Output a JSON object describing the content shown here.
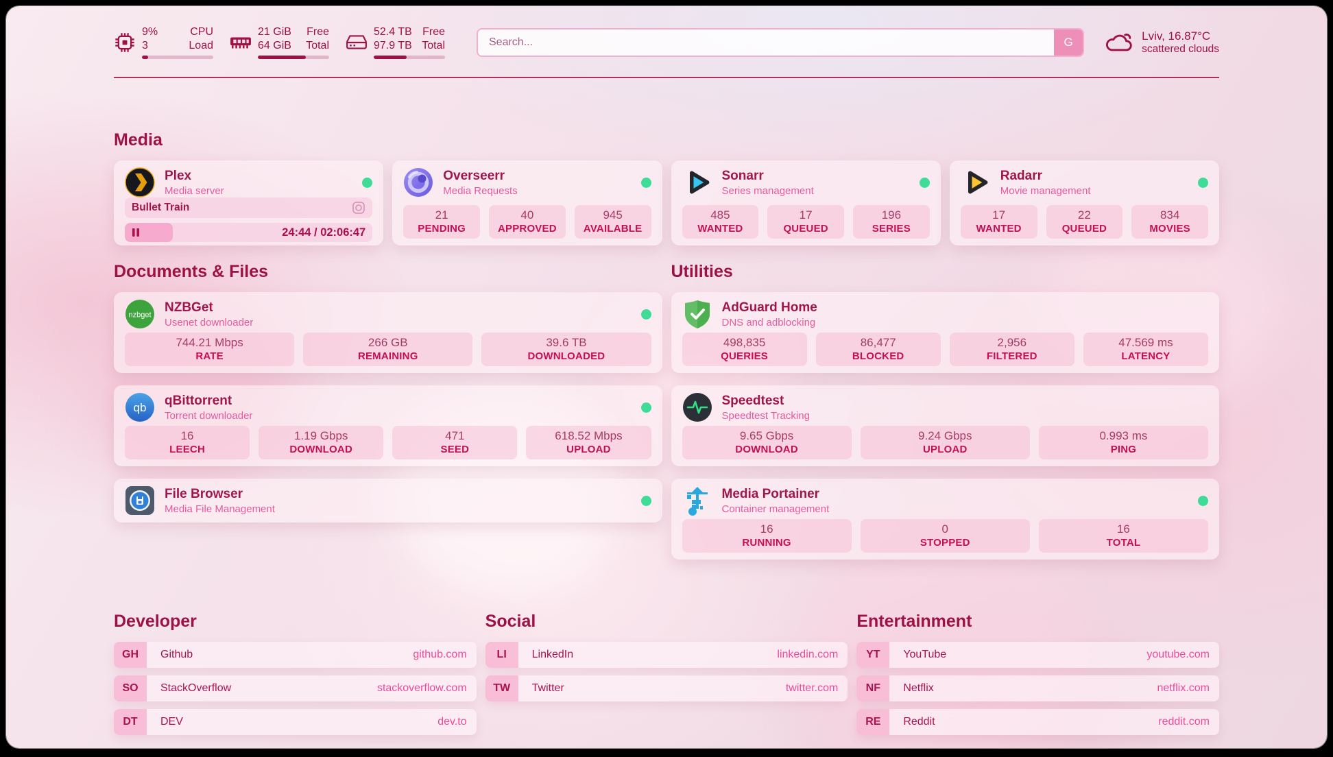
{
  "colors": {
    "accent": "#9e1144",
    "subtitle_pink": "#e9599d",
    "link_pink": "#ee4b9b",
    "status_green": "#3edc96",
    "search_button_pink": "#ee8fba"
  },
  "header": {
    "cpu": {
      "icon": "cpu-icon",
      "values": [
        "9%",
        "3"
      ],
      "labels": [
        "CPU",
        "Load"
      ],
      "progress": 9
    },
    "ram": {
      "icon": "ram-icon",
      "values": [
        "21 GiB",
        "64 GiB"
      ],
      "labels": [
        "Free",
        "Total"
      ],
      "progress": 67
    },
    "disk": {
      "icon": "disk-icon",
      "values": [
        "52.4 TB",
        "97.9 TB"
      ],
      "labels": [
        "Free",
        "Total"
      ],
      "progress": 46
    },
    "search": {
      "placeholder": "Search...",
      "button_label": "G"
    },
    "weather": {
      "icon": "cloud-icon",
      "location_temp": "Lviv, 16.87°C",
      "condition": "scattered clouds"
    }
  },
  "sections": {
    "media": {
      "title": "Media"
    },
    "documents": {
      "title": "Documents & Files"
    },
    "utilities": {
      "title": "Utilities"
    }
  },
  "media_apps": [
    {
      "id": "plex",
      "icon": "plex-icon",
      "name": "Plex",
      "subtitle": "Media server",
      "online": true,
      "now_playing": {
        "title": "Bullet Train",
        "time": "24:44 / 02:06:47",
        "progress": 19.5
      }
    },
    {
      "id": "overseerr",
      "icon": "overseerr-icon",
      "name": "Overseerr",
      "subtitle": "Media Requests",
      "online": true,
      "stats": [
        {
          "value": "21",
          "label": "PENDING"
        },
        {
          "value": "40",
          "label": "APPROVED"
        },
        {
          "value": "945",
          "label": "AVAILABLE"
        }
      ]
    },
    {
      "id": "sonarr",
      "icon": "sonarr-icon",
      "name": "Sonarr",
      "subtitle": "Series management",
      "online": true,
      "stats": [
        {
          "value": "485",
          "label": "WANTED"
        },
        {
          "value": "17",
          "label": "QUEUED"
        },
        {
          "value": "196",
          "label": "SERIES"
        }
      ]
    },
    {
      "id": "radarr",
      "icon": "radarr-icon",
      "name": "Radarr",
      "subtitle": "Movie management",
      "online": true,
      "stats": [
        {
          "value": "17",
          "label": "WANTED"
        },
        {
          "value": "22",
          "label": "QUEUED"
        },
        {
          "value": "834",
          "label": "MOVIES"
        }
      ]
    }
  ],
  "documents_apps": [
    {
      "id": "nzbget",
      "icon": "nzbget-icon",
      "name": "NZBGet",
      "subtitle": "Usenet downloader",
      "online": true,
      "stats": [
        {
          "value": "744.21 Mbps",
          "label": "RATE"
        },
        {
          "value": "266 GB",
          "label": "REMAINING"
        },
        {
          "value": "39.6 TB",
          "label": "DOWNLOADED"
        }
      ]
    },
    {
      "id": "qbittorrent",
      "icon": "qbittorrent-icon",
      "name": "qBittorrent",
      "subtitle": "Torrent downloader",
      "online": true,
      "stats": [
        {
          "value": "16",
          "label": "LEECH"
        },
        {
          "value": "1.19 Gbps",
          "label": "DOWNLOAD"
        },
        {
          "value": "471",
          "label": "SEED"
        },
        {
          "value": "618.52 Mbps",
          "label": "UPLOAD"
        }
      ]
    },
    {
      "id": "filebrowser",
      "icon": "filebrowser-icon",
      "name": "File Browser",
      "subtitle": "Media File Management",
      "online": true,
      "stats": []
    }
  ],
  "utilities_apps": [
    {
      "id": "adguard",
      "icon": "adguard-icon",
      "name": "AdGuard Home",
      "subtitle": "DNS and adblocking",
      "online": false,
      "stats": [
        {
          "value": "498,835",
          "label": "QUERIES"
        },
        {
          "value": "86,477",
          "label": "BLOCKED"
        },
        {
          "value": "2,956",
          "label": "FILTERED"
        },
        {
          "value": "47.569 ms",
          "label": "LATENCY"
        }
      ]
    },
    {
      "id": "speedtest",
      "icon": "speedtest-icon",
      "name": "Speedtest",
      "subtitle": "Speedtest Tracking",
      "online": false,
      "stats": [
        {
          "value": "9.65 Gbps",
          "label": "DOWNLOAD"
        },
        {
          "value": "9.24 Gbps",
          "label": "UPLOAD"
        },
        {
          "value": "0.993 ms",
          "label": "PING"
        }
      ]
    },
    {
      "id": "portainer",
      "icon": "portainer-icon",
      "name": "Media Portainer",
      "subtitle": "Container management",
      "online": true,
      "stats": [
        {
          "value": "16",
          "label": "RUNNING"
        },
        {
          "value": "0",
          "label": "STOPPED"
        },
        {
          "value": "16",
          "label": "TOTAL"
        }
      ]
    }
  ],
  "bookmarks": [
    {
      "title": "Developer",
      "items": [
        {
          "abbr": "GH",
          "name": "Github",
          "url": "github.com"
        },
        {
          "abbr": "SO",
          "name": "StackOverflow",
          "url": "stackoverflow.com"
        },
        {
          "abbr": "DT",
          "name": "DEV",
          "url": "dev.to"
        }
      ]
    },
    {
      "title": "Social",
      "items": [
        {
          "abbr": "LI",
          "name": "LinkedIn",
          "url": "linkedin.com"
        },
        {
          "abbr": "TW",
          "name": "Twitter",
          "url": "twitter.com"
        }
      ]
    },
    {
      "title": "Entertainment",
      "items": [
        {
          "abbr": "YT",
          "name": "YouTube",
          "url": "youtube.com"
        },
        {
          "abbr": "NF",
          "name": "Netflix",
          "url": "netflix.com"
        },
        {
          "abbr": "RE",
          "name": "Reddit",
          "url": "reddit.com"
        }
      ]
    }
  ]
}
